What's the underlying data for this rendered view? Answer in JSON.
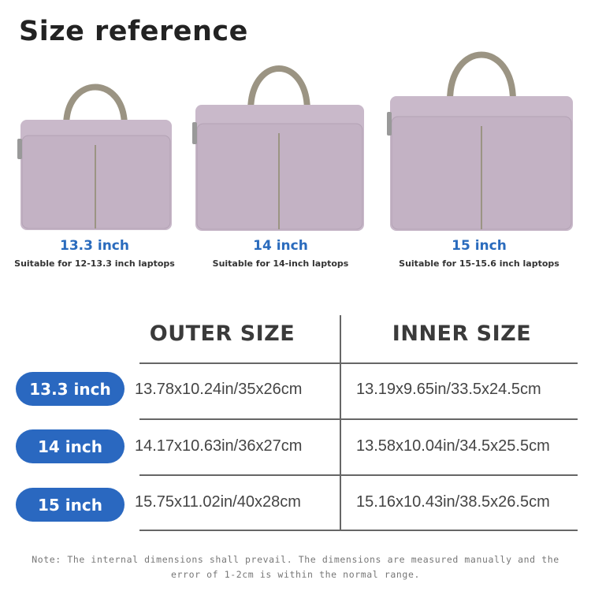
{
  "title": "Size reference",
  "colors": {
    "accent": "#2a68c0",
    "bag": "#c7b7c8",
    "handle": "#9b9483"
  },
  "bags": [
    {
      "size": "13.3 inch",
      "suitable": "Suitable for 12-13.3 inch laptops"
    },
    {
      "size": "14 inch",
      "suitable": "Suitable for 14-inch laptops"
    },
    {
      "size": "15 inch",
      "suitable": "Suitable for 15-15.6 inch laptops"
    }
  ],
  "table": {
    "headers": [
      "OUTER SIZE",
      "INNER SIZE"
    ],
    "rows": [
      {
        "label": "13.3 inch",
        "outer": "13.78x10.24in/35x26cm",
        "inner": "13.19x9.65in/33.5x24.5cm"
      },
      {
        "label": "14 inch",
        "outer": "14.17x10.63in/36x27cm",
        "inner": "13.58x10.04in/34.5x25.5cm"
      },
      {
        "label": "15 inch",
        "outer": "15.75x11.02in/40x28cm",
        "inner": "15.16x10.43in/38.5x26.5cm"
      }
    ]
  },
  "note": "Note: The internal dimensions shall prevail. The dimensions are measured manually and the error of 1-2cm is within the normal range."
}
